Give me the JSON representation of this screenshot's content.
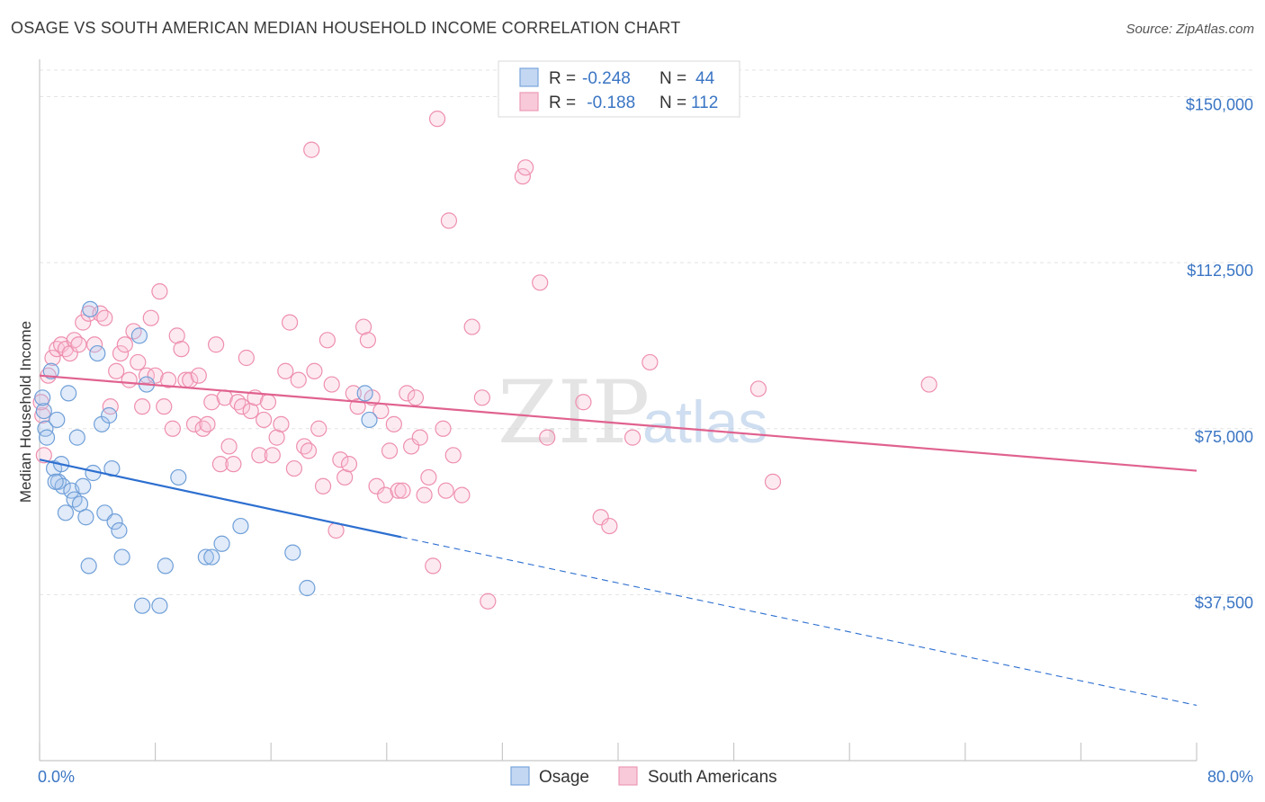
{
  "title": "OSAGE VS SOUTH AMERICAN MEDIAN HOUSEHOLD INCOME CORRELATION CHART",
  "source": "Source: ZipAtlas.com",
  "watermark": {
    "part1": "ZIP",
    "part2": "atlas"
  },
  "legend": {
    "series1": {
      "r_label": "R =",
      "r_value": "-0.248",
      "n_label": "N =",
      "n_value": "44"
    },
    "series2": {
      "r_label": "R =",
      "r_value": " -0.188",
      "n_label": "N =",
      "n_value": "112"
    }
  },
  "bottom_legend": {
    "series1": "Osage",
    "series2": "South Americans"
  },
  "chart_data": {
    "type": "scatter",
    "title": "OSAGE VS SOUTH AMERICAN MEDIAN HOUSEHOLD INCOME CORRELATION CHART",
    "xlabel": "",
    "ylabel": "Median Household Income",
    "xlim": [
      0,
      80
    ],
    "ylim": [
      0,
      156000
    ],
    "x_tick_labels": [
      "0.0%",
      "80.0%"
    ],
    "y_ticks": [
      37500,
      75000,
      112500,
      150000
    ],
    "y_tick_labels": [
      "$37,500",
      "$75,000",
      "$112,500",
      "$150,000"
    ],
    "colors": {
      "series1": "#6f9fd8",
      "series1_line": "#2d6fd0",
      "series2": "#ee8fae",
      "series2_line": "#e0628f",
      "axis_text": "#3a75c4"
    },
    "series": [
      {
        "name": "Osage",
        "points": [
          [
            0.3,
            79000
          ],
          [
            0.4,
            75000
          ],
          [
            0.5,
            73000
          ],
          [
            0.8,
            88000
          ],
          [
            1.0,
            66000
          ],
          [
            1.2,
            77000
          ],
          [
            1.3,
            63000
          ],
          [
            1.5,
            67000
          ],
          [
            1.6,
            62000
          ],
          [
            1.8,
            56000
          ],
          [
            2.0,
            83000
          ],
          [
            2.2,
            61000
          ],
          [
            2.4,
            59000
          ],
          [
            2.6,
            73000
          ],
          [
            2.8,
            58000
          ],
          [
            3.0,
            62000
          ],
          [
            3.2,
            55000
          ],
          [
            3.4,
            44000
          ],
          [
            3.5,
            102000
          ],
          [
            3.7,
            65000
          ],
          [
            4.0,
            92000
          ],
          [
            4.3,
            76000
          ],
          [
            4.5,
            56000
          ],
          [
            4.8,
            78000
          ],
          [
            5.0,
            66000
          ],
          [
            5.2,
            54000
          ],
          [
            5.5,
            52000
          ],
          [
            5.7,
            46000
          ],
          [
            6.9,
            96000
          ],
          [
            7.1,
            35000
          ],
          [
            7.4,
            85000
          ],
          [
            8.3,
            35000
          ],
          [
            8.7,
            44000
          ],
          [
            9.6,
            64000
          ],
          [
            11.5,
            46000
          ],
          [
            11.9,
            46000
          ],
          [
            12.6,
            49000
          ],
          [
            13.9,
            53000
          ],
          [
            17.5,
            47000
          ],
          [
            18.5,
            39000
          ],
          [
            22.5,
            83000
          ],
          [
            22.8,
            77000
          ],
          [
            0.2,
            82000
          ],
          [
            1.1,
            63000
          ]
        ]
      },
      {
        "name": "South Americans",
        "points": [
          [
            0.2,
            78000
          ],
          [
            0.3,
            69000
          ],
          [
            0.6,
            87000
          ],
          [
            0.9,
            91000
          ],
          [
            1.2,
            93000
          ],
          [
            1.5,
            94000
          ],
          [
            1.8,
            93000
          ],
          [
            2.1,
            92000
          ],
          [
            2.4,
            95000
          ],
          [
            2.7,
            94000
          ],
          [
            3.0,
            99000
          ],
          [
            3.4,
            101000
          ],
          [
            3.8,
            94000
          ],
          [
            4.2,
            101000
          ],
          [
            4.5,
            100000
          ],
          [
            4.9,
            80000
          ],
          [
            5.3,
            88000
          ],
          [
            5.6,
            92000
          ],
          [
            5.9,
            94000
          ],
          [
            6.2,
            86000
          ],
          [
            6.5,
            97000
          ],
          [
            6.8,
            90000
          ],
          [
            7.1,
            80000
          ],
          [
            7.4,
            87000
          ],
          [
            7.7,
            100000
          ],
          [
            8.0,
            87000
          ],
          [
            8.3,
            106000
          ],
          [
            8.6,
            80000
          ],
          [
            8.9,
            86000
          ],
          [
            9.2,
            75000
          ],
          [
            9.5,
            96000
          ],
          [
            9.8,
            93000
          ],
          [
            10.1,
            86000
          ],
          [
            10.4,
            86000
          ],
          [
            10.7,
            76000
          ],
          [
            11.0,
            87000
          ],
          [
            11.3,
            75000
          ],
          [
            11.6,
            76000
          ],
          [
            11.9,
            81000
          ],
          [
            12.2,
            94000
          ],
          [
            12.5,
            67000
          ],
          [
            12.8,
            82000
          ],
          [
            13.1,
            71000
          ],
          [
            13.4,
            67000
          ],
          [
            13.7,
            81000
          ],
          [
            14.0,
            80000
          ],
          [
            14.3,
            91000
          ],
          [
            14.6,
            79000
          ],
          [
            14.9,
            82000
          ],
          [
            15.2,
            69000
          ],
          [
            15.5,
            77000
          ],
          [
            15.8,
            81000
          ],
          [
            16.1,
            69000
          ],
          [
            16.4,
            73000
          ],
          [
            16.7,
            76000
          ],
          [
            17.0,
            88000
          ],
          [
            17.3,
            99000
          ],
          [
            17.6,
            66000
          ],
          [
            17.9,
            86000
          ],
          [
            18.3,
            71000
          ],
          [
            18.6,
            70000
          ],
          [
            19.0,
            88000
          ],
          [
            19.3,
            75000
          ],
          [
            19.6,
            62000
          ],
          [
            19.9,
            95000
          ],
          [
            20.2,
            85000
          ],
          [
            20.5,
            52000
          ],
          [
            20.8,
            68000
          ],
          [
            21.1,
            64000
          ],
          [
            21.4,
            67000
          ],
          [
            21.7,
            83000
          ],
          [
            22.0,
            80000
          ],
          [
            22.4,
            98000
          ],
          [
            22.7,
            95000
          ],
          [
            23.0,
            82000
          ],
          [
            23.3,
            62000
          ],
          [
            23.6,
            79000
          ],
          [
            23.9,
            60000
          ],
          [
            24.2,
            70000
          ],
          [
            24.5,
            76000
          ],
          [
            24.8,
            61000
          ],
          [
            25.1,
            61000
          ],
          [
            25.4,
            83000
          ],
          [
            25.7,
            71000
          ],
          [
            26.0,
            82000
          ],
          [
            26.3,
            73000
          ],
          [
            26.6,
            60000
          ],
          [
            26.9,
            64000
          ],
          [
            27.2,
            44000
          ],
          [
            27.5,
            145000
          ],
          [
            27.9,
            75000
          ],
          [
            28.3,
            122000
          ],
          [
            28.6,
            69000
          ],
          [
            29.2,
            60000
          ],
          [
            29.9,
            98000
          ],
          [
            30.6,
            82000
          ],
          [
            31.0,
            36000
          ],
          [
            33.4,
            132000
          ],
          [
            33.6,
            134000
          ],
          [
            34.6,
            108000
          ],
          [
            35.1,
            73000
          ],
          [
            37.6,
            81000
          ],
          [
            38.8,
            55000
          ],
          [
            39.4,
            53000
          ],
          [
            41.0,
            73000
          ],
          [
            42.2,
            90000
          ],
          [
            49.7,
            84000
          ],
          [
            50.7,
            63000
          ],
          [
            61.5,
            85000
          ],
          [
            18.8,
            138000
          ],
          [
            0.1,
            81000
          ],
          [
            28.1,
            61000
          ]
        ]
      }
    ],
    "trend_lines": [
      {
        "series": "Osage",
        "x_start": 0,
        "y_start": 68000,
        "x_solid_end": 25,
        "y_solid_end": 50500,
        "x_end": 80,
        "y_end": 12500,
        "dashed_after_solid": true
      },
      {
        "series": "South Americans",
        "x_start": 0,
        "y_start": 87000,
        "x_end": 80,
        "y_end": 65500
      }
    ]
  }
}
